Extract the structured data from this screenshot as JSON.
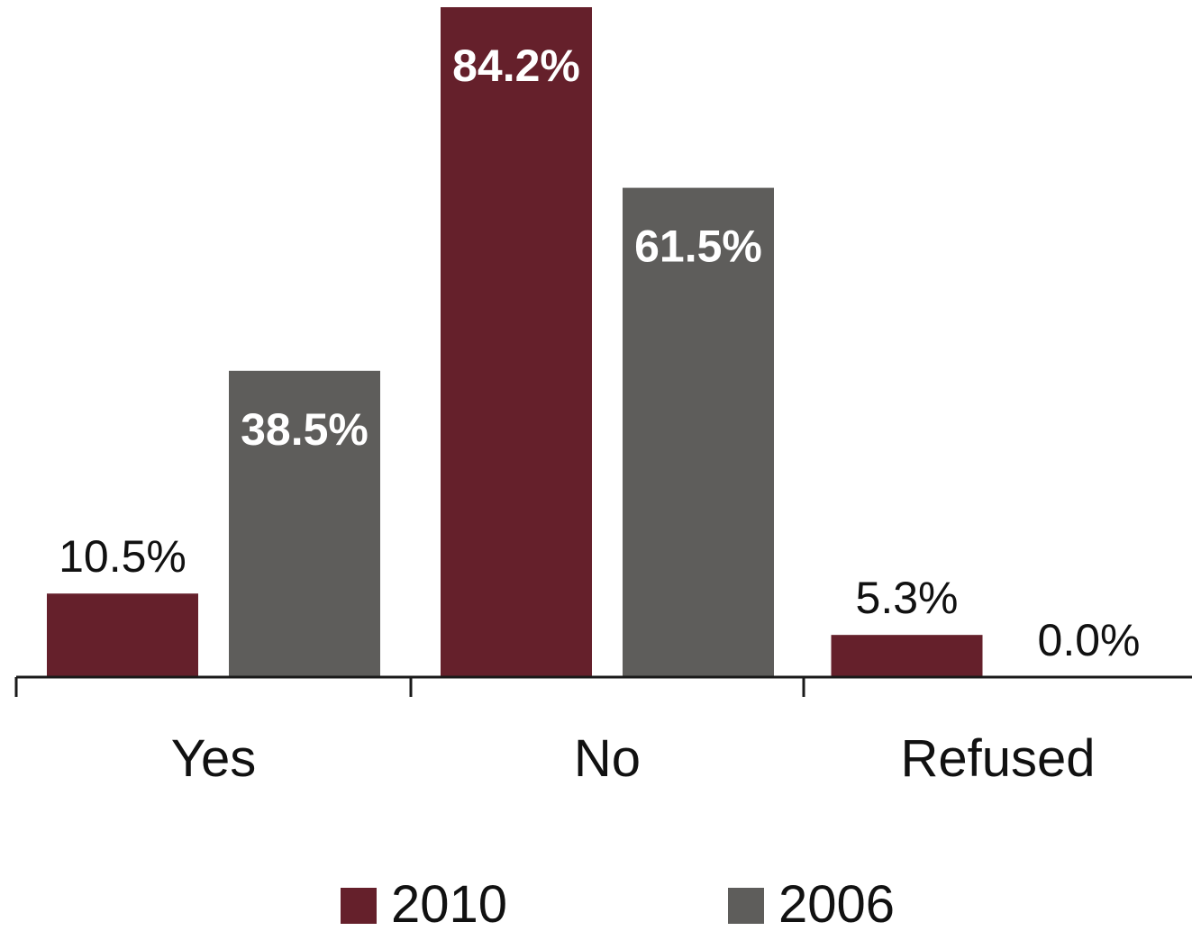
{
  "chart_data": {
    "type": "bar",
    "categories": [
      "Yes",
      "No",
      "Refused"
    ],
    "series": [
      {
        "name": "2010",
        "color": "#65202b",
        "values": [
          10.5,
          84.2,
          5.3
        ],
        "labels": [
          "10.5%",
          "84.2%",
          "5.3%"
        ]
      },
      {
        "name": "2006",
        "color": "#5e5d5b",
        "values": [
          38.5,
          61.5,
          0.0
        ],
        "labels": [
          "38.5%",
          "61.5%",
          "0.0%"
        ]
      }
    ],
    "title": "",
    "xlabel": "",
    "ylabel": "",
    "ylim": [
      0,
      84.2
    ],
    "grid": false,
    "legend": "bottom"
  }
}
